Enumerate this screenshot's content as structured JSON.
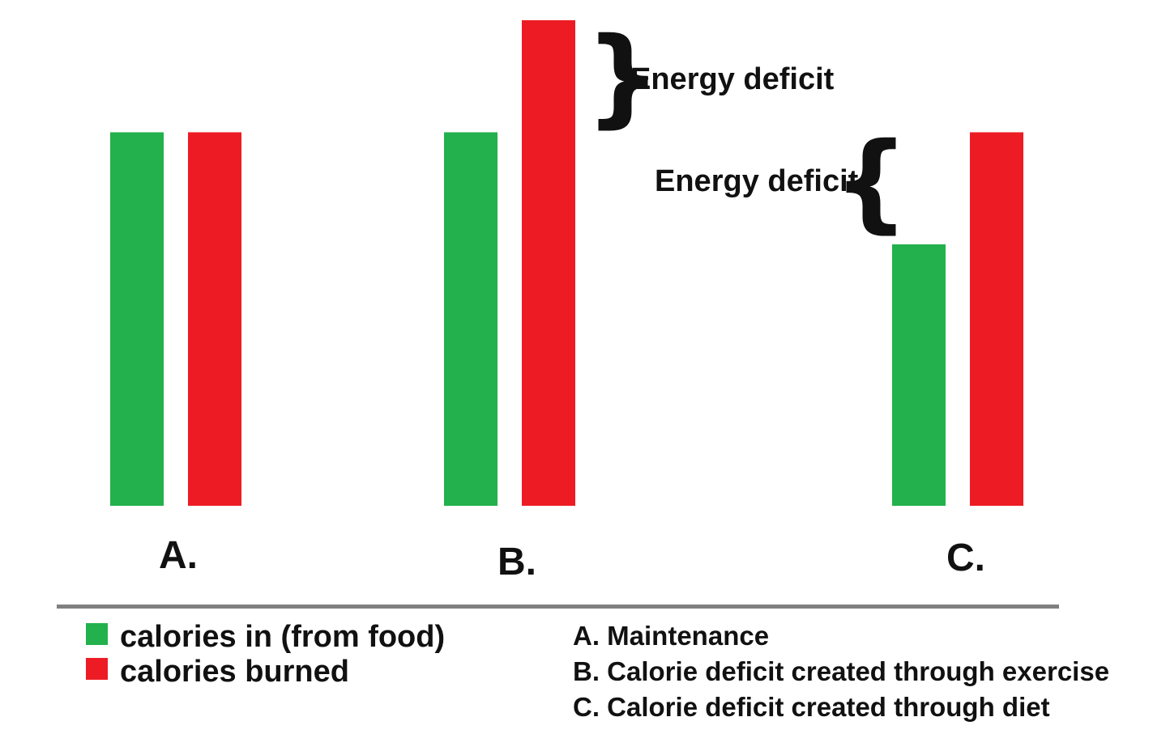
{
  "chart_data": {
    "type": "bar",
    "categories": [
      "A.",
      "B.",
      "C."
    ],
    "series": [
      {
        "name": "calories in (from food)",
        "color": "#22b14c",
        "values": [
          100,
          100,
          70
        ]
      },
      {
        "name": "calories burned",
        "color": "#ed1c24",
        "values": [
          100,
          130,
          100
        ]
      }
    ],
    "ylim": [
      0,
      130
    ],
    "annotations": [
      {
        "text": "Energy deficit",
        "category": "B.",
        "brace": "}"
      },
      {
        "text": "Energy deficit",
        "category": "C.",
        "brace": "{"
      }
    ],
    "legend": {
      "placement": "bottom-left",
      "items": [
        "calories in (from food)",
        "calories burned"
      ]
    },
    "descriptions": [
      "A. Maintenance",
      "B. Calorie deficit created through exercise",
      "C. Calorie deficit created through diet"
    ]
  }
}
